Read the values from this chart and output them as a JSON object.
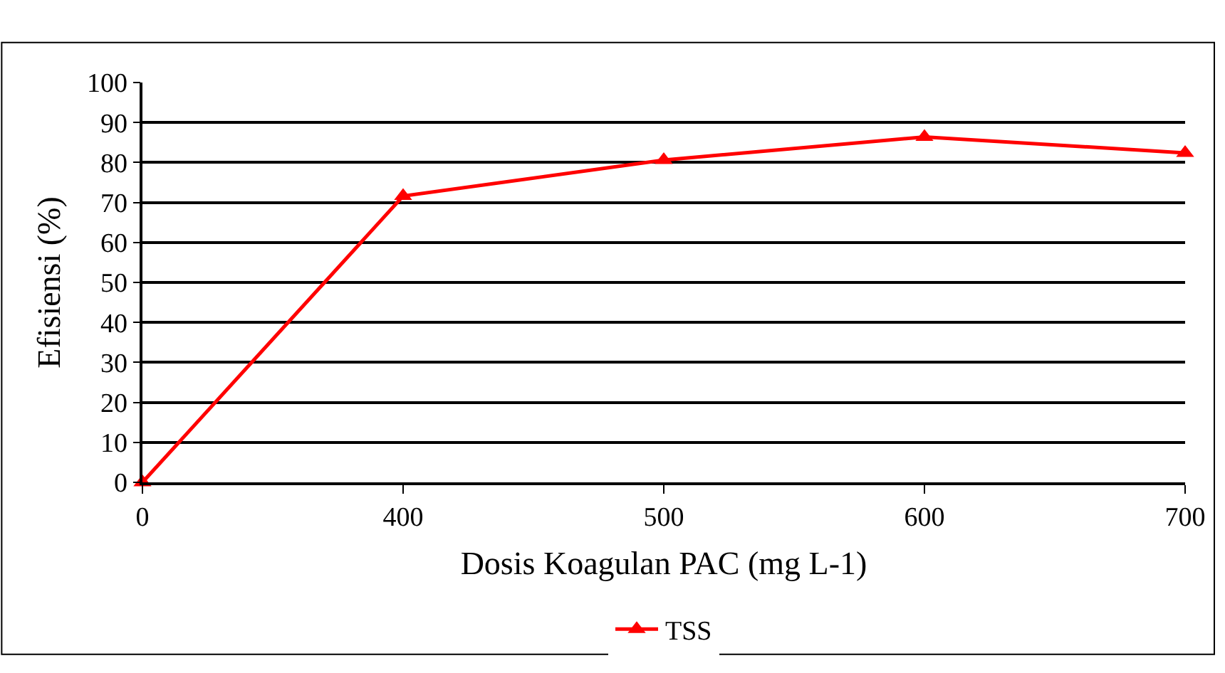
{
  "chart_data": {
    "type": "line",
    "xlabel": "Dosis Koagulan PAC (mg L-1)",
    "ylabel": "Efisiensi (%)",
    "categories": [
      "0",
      "400",
      "500",
      "600",
      "700"
    ],
    "series": [
      {
        "name": "TSS",
        "color": "#ff0000",
        "values": [
          0,
          71.6,
          80.6,
          86.4,
          82.4
        ]
      }
    ],
    "ylim": [
      0,
      100
    ],
    "yticks": [
      0,
      10,
      20,
      30,
      40,
      50,
      60,
      70,
      80,
      90,
      100
    ],
    "grid": "y",
    "legend": "bottom",
    "marker": "triangle",
    "line_style": "solid"
  }
}
